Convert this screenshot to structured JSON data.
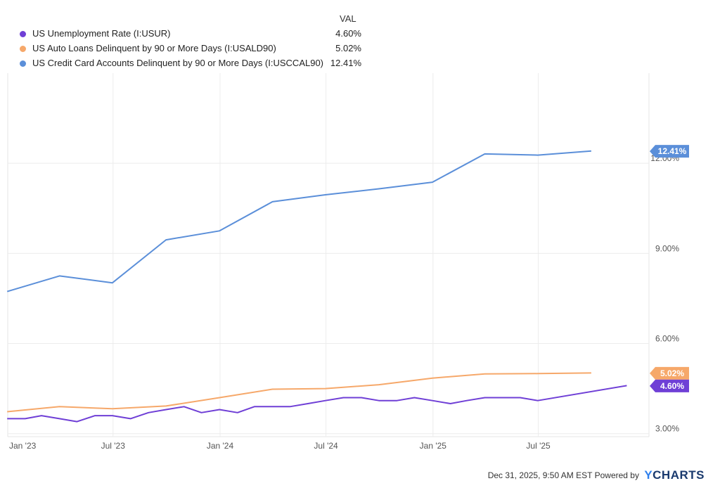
{
  "legend": {
    "header": "VAL",
    "items": [
      {
        "name": "US Unemployment Rate (I:USUR)",
        "value": "4.60%",
        "color": "#6f3fd6"
      },
      {
        "name": "US Auto Loans Delinquent by 90 or More Days (I:USALD90)",
        "value": "5.02%",
        "color": "#f6a86a"
      },
      {
        "name": "US Credit Card Accounts Delinquent by 90 or More Days (I:USCCAL90)",
        "value": "12.41%",
        "color": "#5b8fd9"
      }
    ]
  },
  "chart_data": {
    "type": "line",
    "xlabel": "",
    "ylabel": "",
    "x_axis": {
      "start": "2023-01-01",
      "end": "2025-12-31",
      "ticks": [
        {
          "date": "2023-01-01",
          "label": "Jan '23"
        },
        {
          "date": "2023-07-01",
          "label": "Jul '23"
        },
        {
          "date": "2024-01-01",
          "label": "Jan '24"
        },
        {
          "date": "2024-07-01",
          "label": "Jul '24"
        },
        {
          "date": "2025-01-01",
          "label": "Jan '25"
        },
        {
          "date": "2025-07-01",
          "label": "Jul '25"
        }
      ]
    },
    "y_axis": {
      "min": 2.9,
      "max": 15.0,
      "ticks": [
        {
          "value": 3,
          "label": "3.00%"
        },
        {
          "value": 6,
          "label": "6.00%"
        },
        {
          "value": 9,
          "label": "9.00%"
        },
        {
          "value": 12,
          "label": "12.00%"
        }
      ]
    },
    "grid": true,
    "series": [
      {
        "name": "US Credit Card Accounts Delinquent by 90 or More Days (I:USCCAL90)",
        "color": "#5b8fd9",
        "last_label": "12.41%",
        "points": [
          [
            "2022-12-31",
            7.73
          ],
          [
            "2023-03-31",
            8.25
          ],
          [
            "2023-06-30",
            8.02
          ],
          [
            "2023-09-30",
            9.45
          ],
          [
            "2023-12-31",
            9.75
          ],
          [
            "2024-03-31",
            10.72
          ],
          [
            "2024-06-30",
            10.95
          ],
          [
            "2024-09-30",
            11.15
          ],
          [
            "2024-12-31",
            11.37
          ],
          [
            "2025-03-31",
            12.31
          ],
          [
            "2025-06-30",
            12.27
          ],
          [
            "2025-09-30",
            12.41
          ]
        ]
      },
      {
        "name": "US Auto Loans Delinquent by 90 or More Days (I:USALD90)",
        "color": "#f6a86a",
        "last_label": "5.02%",
        "points": [
          [
            "2022-12-31",
            3.73
          ],
          [
            "2023-03-31",
            3.9
          ],
          [
            "2023-06-30",
            3.83
          ],
          [
            "2023-09-30",
            3.92
          ],
          [
            "2023-12-31",
            4.2
          ],
          [
            "2024-03-31",
            4.48
          ],
          [
            "2024-06-30",
            4.5
          ],
          [
            "2024-09-30",
            4.63
          ],
          [
            "2024-12-31",
            4.85
          ],
          [
            "2025-03-31",
            4.99
          ],
          [
            "2025-06-30",
            5.0
          ],
          [
            "2025-09-30",
            5.02
          ]
        ]
      },
      {
        "name": "US Unemployment Rate (I:USUR)",
        "color": "#6f3fd6",
        "last_label": "4.60%",
        "points": [
          [
            "2022-12-31",
            3.5
          ],
          [
            "2023-01-31",
            3.5
          ],
          [
            "2023-02-28",
            3.6
          ],
          [
            "2023-03-31",
            3.5
          ],
          [
            "2023-04-30",
            3.4
          ],
          [
            "2023-05-31",
            3.6
          ],
          [
            "2023-06-30",
            3.6
          ],
          [
            "2023-07-31",
            3.5
          ],
          [
            "2023-08-31",
            3.7
          ],
          [
            "2023-09-30",
            3.8
          ],
          [
            "2023-10-31",
            3.9
          ],
          [
            "2023-11-30",
            3.7
          ],
          [
            "2023-12-31",
            3.8
          ],
          [
            "2024-01-31",
            3.7
          ],
          [
            "2024-02-29",
            3.9
          ],
          [
            "2024-03-31",
            3.9
          ],
          [
            "2024-04-30",
            3.9
          ],
          [
            "2024-05-31",
            4.0
          ],
          [
            "2024-06-30",
            4.1
          ],
          [
            "2024-07-31",
            4.2
          ],
          [
            "2024-08-31",
            4.2
          ],
          [
            "2024-09-30",
            4.1
          ],
          [
            "2024-10-31",
            4.1
          ],
          [
            "2024-11-30",
            4.2
          ],
          [
            "2024-12-31",
            4.1
          ],
          [
            "2025-01-31",
            4.0
          ],
          [
            "2025-02-28",
            4.1
          ],
          [
            "2025-03-31",
            4.2
          ],
          [
            "2025-04-30",
            4.2
          ],
          [
            "2025-05-31",
            4.2
          ],
          [
            "2025-06-30",
            4.1
          ],
          [
            "2025-11-30",
            4.6
          ]
        ]
      }
    ]
  },
  "footer": {
    "timestamp": "Dec 31, 2025, 9:50 AM EST",
    "powered_by": "Powered by",
    "brand_y": "Y",
    "brand_rest": "CHARTS"
  }
}
